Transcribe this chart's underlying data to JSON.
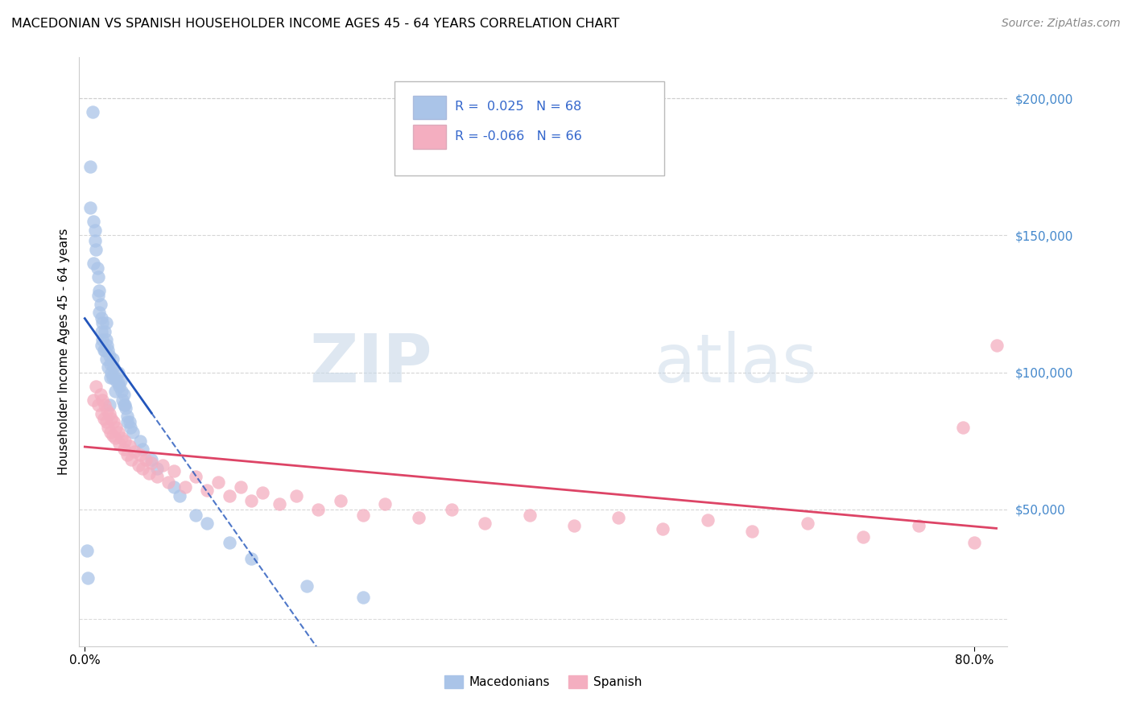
{
  "title": "MACEDONIAN VS SPANISH HOUSEHOLDER INCOME AGES 45 - 64 YEARS CORRELATION CHART",
  "source": "Source: ZipAtlas.com",
  "ylabel": "Householder Income Ages 45 - 64 years",
  "ytick_labels": [
    "$50,000",
    "$100,000",
    "$150,000",
    "$200,000"
  ],
  "ytick_values": [
    50000,
    100000,
    150000,
    200000
  ],
  "ylim": [
    0,
    215000
  ],
  "xlim": [
    -0.005,
    0.83
  ],
  "macedonian_color": "#aac4e8",
  "spanish_color": "#f4aec0",
  "macedonian_line_color": "#2255bb",
  "spanish_line_color": "#dd4466",
  "legend_label_macedonians": "Macedonians",
  "legend_label_spanish": "Spanish",
  "mac_x": [
    0.002,
    0.003,
    0.007,
    0.005,
    0.005,
    0.008,
    0.009,
    0.009,
    0.008,
    0.01,
    0.011,
    0.012,
    0.012,
    0.013,
    0.013,
    0.014,
    0.015,
    0.015,
    0.015,
    0.016,
    0.016,
    0.017,
    0.018,
    0.018,
    0.019,
    0.019,
    0.02,
    0.021,
    0.021,
    0.022,
    0.023,
    0.023,
    0.024,
    0.025,
    0.025,
    0.026,
    0.027,
    0.027,
    0.028,
    0.03,
    0.031,
    0.032,
    0.033,
    0.034,
    0.035,
    0.036,
    0.037,
    0.038,
    0.04,
    0.041,
    0.043,
    0.05,
    0.052,
    0.06,
    0.065,
    0.08,
    0.085,
    0.1,
    0.11,
    0.13,
    0.15,
    0.2,
    0.25,
    0.03,
    0.035,
    0.038,
    0.022,
    0.019
  ],
  "mac_y": [
    35000,
    25000,
    195000,
    175000,
    160000,
    155000,
    152000,
    148000,
    140000,
    145000,
    138000,
    135000,
    128000,
    130000,
    122000,
    125000,
    120000,
    115000,
    110000,
    118000,
    112000,
    108000,
    115000,
    108000,
    112000,
    105000,
    110000,
    108000,
    102000,
    106000,
    103000,
    98000,
    100000,
    105000,
    98000,
    102000,
    98000,
    93000,
    97000,
    100000,
    95000,
    97000,
    93000,
    90000,
    92000,
    88000,
    87000,
    84000,
    82000,
    80000,
    78000,
    75000,
    72000,
    68000,
    65000,
    58000,
    55000,
    48000,
    45000,
    38000,
    32000,
    22000,
    18000,
    96000,
    88000,
    82000,
    88000,
    118000
  ],
  "spa_x": [
    0.008,
    0.01,
    0.012,
    0.014,
    0.015,
    0.016,
    0.017,
    0.018,
    0.019,
    0.02,
    0.021,
    0.022,
    0.023,
    0.024,
    0.025,
    0.026,
    0.027,
    0.028,
    0.03,
    0.031,
    0.033,
    0.035,
    0.036,
    0.038,
    0.04,
    0.042,
    0.045,
    0.048,
    0.05,
    0.052,
    0.055,
    0.058,
    0.06,
    0.065,
    0.07,
    0.075,
    0.08,
    0.09,
    0.1,
    0.11,
    0.12,
    0.13,
    0.14,
    0.15,
    0.16,
    0.175,
    0.19,
    0.21,
    0.23,
    0.25,
    0.27,
    0.3,
    0.33,
    0.36,
    0.4,
    0.44,
    0.48,
    0.52,
    0.56,
    0.6,
    0.65,
    0.7,
    0.75,
    0.8,
    0.82,
    0.79
  ],
  "spa_y": [
    90000,
    95000,
    88000,
    92000,
    85000,
    90000,
    83000,
    88000,
    82000,
    86000,
    80000,
    85000,
    78000,
    83000,
    77000,
    82000,
    76000,
    80000,
    78000,
    74000,
    76000,
    72000,
    75000,
    70000,
    73000,
    68000,
    71000,
    66000,
    70000,
    65000,
    68000,
    63000,
    67000,
    62000,
    66000,
    60000,
    64000,
    58000,
    62000,
    57000,
    60000,
    55000,
    58000,
    53000,
    56000,
    52000,
    55000,
    50000,
    53000,
    48000,
    52000,
    47000,
    50000,
    45000,
    48000,
    44000,
    47000,
    43000,
    46000,
    42000,
    45000,
    40000,
    44000,
    38000,
    110000,
    80000
  ]
}
